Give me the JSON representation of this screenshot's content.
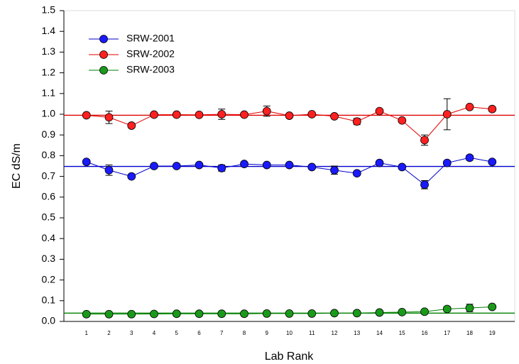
{
  "chart_data": {
    "type": "line",
    "x_label": "Lab Rank",
    "y_label": "EC dS/m",
    "categories": [
      "1",
      "2",
      "3",
      "4",
      "5",
      "6",
      "7",
      "8",
      "9",
      "10",
      "11",
      "12",
      "13",
      "14",
      "15",
      "16",
      "17",
      "18",
      "19"
    ],
    "ylim": [
      0.0,
      1.5
    ],
    "yticks": [
      {
        "value": 0,
        "label": "0.0"
      },
      0.1,
      0.2,
      0.3,
      0.4,
      0.5,
      0.6,
      0.7,
      0.8,
      0.9,
      {
        "value": 1,
        "label": "1.0"
      },
      1.1,
      1.2,
      1.3,
      1.4,
      1.5
    ],
    "legend": "upper-left",
    "series": [
      {
        "name": "SRW-2001",
        "color": "#0000cc",
        "marker_color": "#1a1aff",
        "reference": 0.748,
        "values": [
          0.77,
          0.73,
          0.7,
          0.75,
          0.75,
          0.755,
          0.74,
          0.76,
          0.755,
          0.755,
          0.745,
          0.73,
          0.715,
          0.765,
          0.745,
          0.66,
          0.765,
          0.79,
          0.77
        ],
        "errors": [
          0.01,
          0.025,
          0.005,
          0.005,
          0.005,
          0.005,
          0.015,
          0.005,
          0.005,
          0.005,
          0.005,
          0.02,
          0.005,
          0.005,
          0.005,
          0.02,
          0.01,
          0.012,
          0.005
        ]
      },
      {
        "name": "SRW-2002",
        "color": "#e00000",
        "marker_color": "#ff2020",
        "reference": 0.995,
        "values": [
          0.995,
          0.985,
          0.945,
          0.998,
          0.998,
          0.997,
          1.0,
          0.998,
          1.015,
          0.993,
          1.0,
          0.99,
          0.965,
          1.015,
          0.97,
          0.875,
          1.0,
          1.035,
          1.025
        ],
        "errors": [
          0.005,
          0.03,
          0.01,
          0.005,
          0.005,
          0.005,
          0.025,
          0.003,
          0.025,
          0.003,
          0.005,
          0.005,
          0.015,
          0.01,
          0.005,
          0.025,
          0.075,
          0.008,
          0.01
        ]
      },
      {
        "name": "SRW-2003",
        "color": "#008000",
        "marker_color": "#1a9a1a",
        "reference": 0.04,
        "values": [
          0.035,
          0.035,
          0.035,
          0.036,
          0.037,
          0.037,
          0.037,
          0.037,
          0.038,
          0.038,
          0.038,
          0.04,
          0.04,
          0.043,
          0.045,
          0.047,
          0.06,
          0.065,
          0.07
        ],
        "errors": [
          0.003,
          0.003,
          0.003,
          0.003,
          0.003,
          0.003,
          0.003,
          0.003,
          0.003,
          0.003,
          0.003,
          0.003,
          0.003,
          0.003,
          0.003,
          0.005,
          0.01,
          0.018,
          0.008
        ]
      }
    ]
  }
}
